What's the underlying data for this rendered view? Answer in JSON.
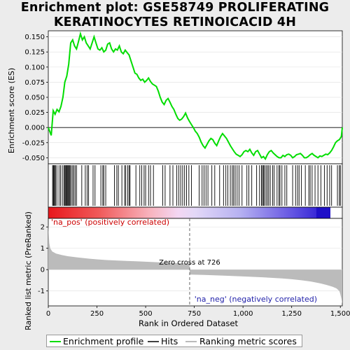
{
  "title_line1": "Enrichment plot: GSE58749 PROLIFERATING",
  "title_line2": "KERATINOCYTES RETINOICACID 4H",
  "chart_data": [
    {
      "type": "line",
      "panel": "enrichment",
      "ylabel": "Enrichment score (ES)",
      "xlim": [
        0,
        1510
      ],
      "ylim": [
        -0.06,
        0.16
      ],
      "yticks": [
        -0.05,
        -0.025,
        0.0,
        0.025,
        0.05,
        0.075,
        0.1,
        0.125,
        0.15
      ],
      "ytick_labels": [
        "-0.050",
        "-0.025",
        "0.000",
        "0.025",
        "0.050",
        "0.075",
        "0.100",
        "0.125",
        "0.150"
      ],
      "series": [
        {
          "name": "Enrichment profile",
          "color": "#00dd00",
          "x": [
            0,
            15,
            25,
            35,
            45,
            55,
            65,
            75,
            85,
            95,
            105,
            115,
            125,
            135,
            145,
            155,
            165,
            175,
            185,
            195,
            205,
            215,
            225,
            235,
            245,
            255,
            265,
            275,
            285,
            295,
            305,
            315,
            325,
            335,
            345,
            355,
            365,
            375,
            385,
            395,
            405,
            415,
            425,
            435,
            445,
            455,
            465,
            475,
            485,
            495,
            505,
            515,
            525,
            535,
            545,
            555,
            565,
            575,
            585,
            595,
            605,
            615,
            625,
            635,
            645,
            655,
            665,
            675,
            685,
            695,
            705,
            715,
            725,
            735,
            745,
            755,
            765,
            775,
            785,
            795,
            805,
            815,
            825,
            835,
            845,
            855,
            865,
            875,
            885,
            895,
            905,
            915,
            925,
            935,
            945,
            955,
            965,
            975,
            985,
            995,
            1005,
            1015,
            1025,
            1035,
            1045,
            1055,
            1065,
            1075,
            1085,
            1095,
            1105,
            1115,
            1125,
            1135,
            1145,
            1155,
            1165,
            1175,
            1185,
            1195,
            1205,
            1215,
            1225,
            1235,
            1245,
            1255,
            1265,
            1275,
            1285,
            1295,
            1305,
            1315,
            1325,
            1335,
            1345,
            1355,
            1365,
            1375,
            1385,
            1395,
            1405,
            1415,
            1425,
            1435,
            1445,
            1455,
            1465,
            1475,
            1485,
            1495,
            1505,
            1510
          ],
          "y": [
            0.0,
            -0.013,
            0.028,
            0.022,
            0.03,
            0.026,
            0.035,
            0.05,
            0.075,
            0.085,
            0.105,
            0.14,
            0.145,
            0.135,
            0.13,
            0.142,
            0.155,
            0.145,
            0.15,
            0.14,
            0.135,
            0.13,
            0.14,
            0.15,
            0.14,
            0.13,
            0.128,
            0.132,
            0.125,
            0.128,
            0.138,
            0.14,
            0.13,
            0.125,
            0.13,
            0.128,
            0.135,
            0.125,
            0.122,
            0.128,
            0.124,
            0.12,
            0.11,
            0.1,
            0.09,
            0.088,
            0.082,
            0.078,
            0.08,
            0.075,
            0.078,
            0.082,
            0.076,
            0.072,
            0.07,
            0.068,
            0.06,
            0.05,
            0.042,
            0.038,
            0.045,
            0.048,
            0.042,
            0.035,
            0.03,
            0.022,
            0.015,
            0.012,
            0.014,
            0.018,
            0.024,
            0.016,
            0.01,
            0.005,
            0.0,
            -0.006,
            -0.01,
            -0.016,
            -0.024,
            -0.03,
            -0.034,
            -0.028,
            -0.022,
            -0.018,
            -0.02,
            -0.026,
            -0.03,
            -0.022,
            -0.015,
            -0.01,
            -0.014,
            -0.018,
            -0.024,
            -0.03,
            -0.035,
            -0.04,
            -0.044,
            -0.046,
            -0.048,
            -0.045,
            -0.04,
            -0.038,
            -0.04,
            -0.036,
            -0.042,
            -0.046,
            -0.04,
            -0.038,
            -0.044,
            -0.05,
            -0.048,
            -0.052,
            -0.045,
            -0.04,
            -0.038,
            -0.042,
            -0.045,
            -0.048,
            -0.05,
            -0.05,
            -0.046,
            -0.048,
            -0.045,
            -0.044,
            -0.046,
            -0.05,
            -0.048,
            -0.045,
            -0.044,
            -0.043,
            -0.046,
            -0.05,
            -0.05,
            -0.048,
            -0.045,
            -0.043,
            -0.046,
            -0.048,
            -0.05,
            -0.047,
            -0.048,
            -0.046,
            -0.044,
            -0.045,
            -0.042,
            -0.038,
            -0.032,
            -0.025,
            -0.022,
            -0.02,
            -0.015,
            0.0
          ]
        }
      ]
    },
    {
      "type": "bar",
      "panel": "hits",
      "series": [
        {
          "name": "Hits",
          "color": "#000000",
          "x": [
            22,
            26,
            29,
            33,
            37,
            44,
            55,
            63,
            72,
            80,
            85,
            89,
            93,
            96,
            100,
            104,
            108,
            112,
            118,
            125,
            131,
            138,
            145,
            172,
            190,
            200,
            207,
            230,
            240,
            270,
            280,
            285,
            295,
            340,
            352,
            360,
            378,
            392,
            398,
            408,
            415,
            420,
            450,
            470,
            480,
            492,
            500,
            515,
            525,
            540,
            588,
            600,
            625,
            640,
            660,
            670,
            680,
            690,
            700,
            710,
            722,
            735,
            775,
            790,
            800,
            810,
            820,
            840,
            855,
            880,
            900,
            912,
            922,
            935,
            945,
            952,
            960,
            970,
            980,
            995,
            1020,
            1030,
            1045,
            1070,
            1085,
            1095,
            1100,
            1105,
            1110,
            1118,
            1125,
            1132,
            1140,
            1152,
            1160,
            1175,
            1185,
            1190,
            1200,
            1215,
            1225,
            1255,
            1270,
            1280,
            1288,
            1300,
            1320,
            1338,
            1345,
            1355,
            1370,
            1385,
            1400,
            1418,
            1432,
            1445,
            1455,
            1485,
            1495,
            1500
          ]
        }
      ]
    },
    {
      "type": "area",
      "panel": "ranked_list",
      "name": "Ranking metric scores",
      "xlabel": "Rank in Ordered Dataset",
      "ylabel": "Ranked list metric (PreRanked)",
      "xlim": [
        0,
        1510
      ],
      "ylim": [
        -1.7,
        2.4
      ],
      "xticks": [
        0,
        250,
        500,
        750,
        1000,
        1250,
        1500
      ],
      "xtick_labels": [
        "0",
        "250",
        "500",
        "750",
        "1,000",
        "1,250",
        "1,500"
      ],
      "yticks": [
        -1,
        0,
        1,
        2
      ],
      "ytick_labels": [
        "-1",
        "0",
        "1",
        "2"
      ],
      "color": "#bbbbbb",
      "x": [
        0,
        2,
        5,
        10,
        20,
        40,
        70,
        100,
        150,
        200,
        250,
        300,
        350,
        400,
        450,
        500,
        550,
        600,
        650,
        700,
        725,
        726,
        730,
        800,
        900,
        1000,
        1100,
        1200,
        1250,
        1300,
        1350,
        1400,
        1430,
        1460,
        1480,
        1495,
        1500,
        1505,
        1510
      ],
      "y": [
        2.1,
        1.7,
        1.25,
        1.0,
        0.85,
        0.75,
        0.68,
        0.63,
        0.57,
        0.52,
        0.48,
        0.45,
        0.43,
        0.41,
        0.39,
        0.37,
        0.35,
        0.33,
        0.31,
        0.29,
        0.28,
        -0.22,
        -0.23,
        -0.25,
        -0.28,
        -0.32,
        -0.36,
        -0.41,
        -0.45,
        -0.5,
        -0.56,
        -0.65,
        -0.72,
        -0.8,
        -0.88,
        -1.0,
        -1.15,
        -1.35,
        -1.6
      ],
      "zero_cross": 726,
      "zero_cross_label": "Zero cross at 726",
      "pos_label": "'na_pos' (positively correlated)",
      "neg_label": "'na_neg' (negatively correlated)"
    }
  ],
  "legend": {
    "items": [
      {
        "label": "Enrichment profile",
        "color": "#00dd00"
      },
      {
        "label": "Hits",
        "color": "#000000"
      },
      {
        "label": "Ranking metric scores",
        "color": "#bbbbbb"
      }
    ]
  }
}
